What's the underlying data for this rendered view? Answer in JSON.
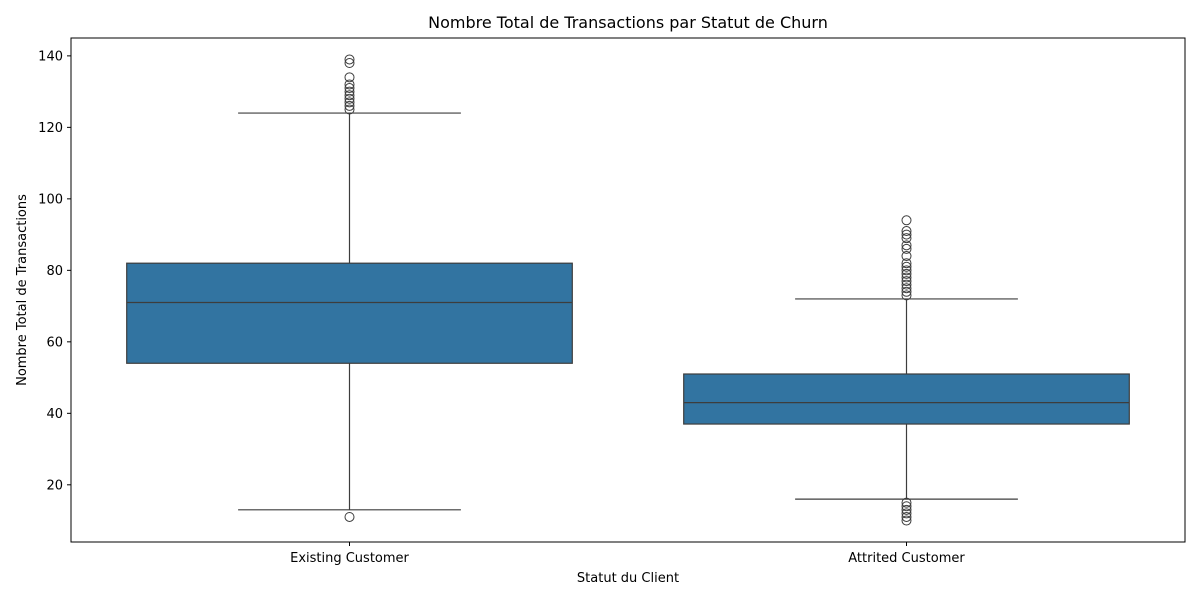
{
  "chart_data": {
    "type": "box",
    "title": "Nombre Total de Transactions par Statut de Churn",
    "xlabel": "Statut du Client",
    "ylabel": "Nombre Total de Transactions",
    "ylim": [
      4,
      145
    ],
    "yticks": [
      20,
      40,
      60,
      80,
      100,
      120,
      140
    ],
    "grid": false,
    "color": "#3274a1",
    "categories": [
      "Existing Customer",
      "Attrited Customer"
    ],
    "boxes": [
      {
        "category": "Existing Customer",
        "whisker_low": 13,
        "q1": 54,
        "median": 71,
        "q3": 82,
        "whisker_high": 124,
        "outliers": [
          11,
          125,
          126,
          127,
          128,
          129,
          130,
          131,
          132,
          134,
          138,
          139
        ]
      },
      {
        "category": "Attrited Customer",
        "whisker_low": 16,
        "q1": 37,
        "median": 43,
        "q3": 51,
        "whisker_high": 72,
        "outliers": [
          10,
          11,
          12,
          13,
          14,
          15,
          73,
          74,
          75,
          76,
          77,
          78,
          79,
          80,
          81,
          82,
          84,
          86,
          87,
          89,
          90,
          91,
          94
        ]
      }
    ]
  }
}
